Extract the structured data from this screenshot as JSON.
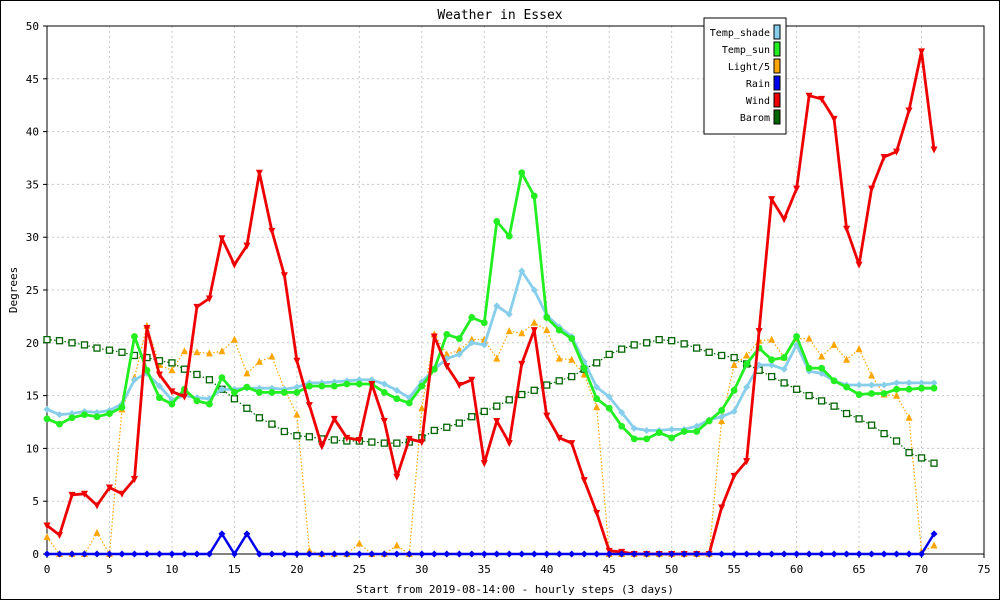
{
  "chart_data": {
    "type": "line",
    "title": "Weather in Essex",
    "xlabel": "Start from 2019-08-14:00 - hourly steps (3 days)",
    "ylabel": "Degrees",
    "xlim": [
      0,
      75
    ],
    "ylim": [
      0,
      50
    ],
    "x_ticks": [
      0,
      5,
      10,
      15,
      20,
      25,
      30,
      35,
      40,
      45,
      50,
      55,
      60,
      65,
      70,
      75
    ],
    "y_ticks": [
      0,
      5,
      10,
      15,
      20,
      25,
      30,
      35,
      40,
      45,
      50
    ],
    "grid": true,
    "legend_position": "top-right",
    "x": [
      0,
      1,
      2,
      3,
      4,
      5,
      6,
      7,
      8,
      9,
      10,
      11,
      12,
      13,
      14,
      15,
      16,
      17,
      18,
      19,
      20,
      21,
      22,
      23,
      24,
      25,
      26,
      27,
      28,
      29,
      30,
      31,
      32,
      33,
      34,
      35,
      36,
      37,
      38,
      39,
      40,
      41,
      42,
      43,
      44,
      45,
      46,
      47,
      48,
      49,
      50,
      51,
      52,
      53,
      54,
      55,
      56,
      57,
      58,
      59,
      60,
      61,
      62,
      63,
      64,
      65,
      66,
      67,
      68,
      69,
      70,
      71
    ],
    "series": [
      {
        "name": "Temp_shade",
        "color": "#87ceeb",
        "style": "solid",
        "marker": "diamond",
        "values": [
          13.7,
          13.2,
          13.3,
          13.5,
          13.4,
          13.6,
          14.2,
          16.5,
          17.1,
          15.9,
          14.6,
          15.0,
          14.8,
          14.7,
          15.6,
          15.6,
          15.7,
          15.7,
          15.7,
          15.6,
          15.8,
          16.2,
          16.2,
          16.3,
          16.4,
          16.5,
          16.5,
          16.1,
          15.5,
          14.8,
          16.3,
          17.5,
          18.5,
          18.9,
          20.0,
          19.8,
          23.5,
          22.7,
          26.8,
          25.0,
          22.6,
          21.5,
          20.6,
          18.2,
          15.8,
          14.9,
          13.4,
          11.9,
          11.7,
          11.7,
          11.8,
          11.8,
          12.1,
          12.7,
          13.0,
          13.5,
          15.8,
          17.9,
          17.9,
          17.5,
          19.8,
          17.3,
          17.1,
          16.4,
          16.0,
          16.0,
          16.0,
          16.0,
          16.2,
          16.2,
          16.2,
          16.2
        ]
      },
      {
        "name": "Temp_sun",
        "color": "#22ee22",
        "style": "solid",
        "marker": "circle",
        "values": [
          12.8,
          12.3,
          12.9,
          13.2,
          13.0,
          13.3,
          13.9,
          20.6,
          17.4,
          14.8,
          14.2,
          15.6,
          14.5,
          14.2,
          16.7,
          15.3,
          15.8,
          15.3,
          15.3,
          15.3,
          15.3,
          15.9,
          15.9,
          15.9,
          16.1,
          16.1,
          16.1,
          15.3,
          14.7,
          14.3,
          15.9,
          17.5,
          20.8,
          20.4,
          22.4,
          21.9,
          31.5,
          30.1,
          36.1,
          33.9,
          22.4,
          21.2,
          20.4,
          17.6,
          14.7,
          13.8,
          12.1,
          10.9,
          10.9,
          11.5,
          11.0,
          11.6,
          11.6,
          12.6,
          13.6,
          15.5,
          18.0,
          19.5,
          18.4,
          18.6,
          20.6,
          17.6,
          17.6,
          16.4,
          15.8,
          15.1,
          15.2,
          15.2,
          15.6,
          15.6,
          15.7,
          15.7
        ]
      },
      {
        "name": "Light/5",
        "color": "#ffa500",
        "style": "dotted",
        "marker": "triangle-up",
        "values": [
          1.6,
          0.0,
          0.0,
          0.0,
          2.0,
          0.0,
          13.7,
          16.7,
          21.6,
          17.9,
          17.4,
          19.2,
          19.1,
          19.0,
          19.2,
          20.3,
          17.1,
          18.2,
          18.7,
          15.6,
          13.2,
          0.3,
          0.0,
          0.0,
          0.0,
          1.0,
          0.0,
          0.0,
          0.8,
          0.0,
          13.8,
          20.8,
          18.9,
          19.3,
          20.3,
          20.3,
          18.5,
          21.1,
          20.9,
          21.9,
          21.2,
          18.5,
          18.4,
          17.0,
          13.9,
          0.0,
          0.0,
          0.0,
          0.0,
          0.0,
          0.0,
          0.0,
          0.0,
          0.0,
          12.6,
          17.9,
          18.8,
          20.2,
          20.3,
          18.6,
          20.4,
          20.4,
          18.7,
          19.8,
          18.4,
          19.4,
          16.9,
          15.1,
          15.0,
          12.9,
          0.2,
          0.8
        ]
      },
      {
        "name": "Rain",
        "color": "#0000ee",
        "style": "solid",
        "marker": "diamond",
        "values": [
          0,
          0,
          0,
          0,
          0,
          0,
          0,
          0,
          0,
          0,
          0,
          0,
          0,
          0,
          1.9,
          0,
          1.9,
          0,
          0,
          0,
          0,
          0,
          0,
          0,
          0,
          0,
          0,
          0,
          0,
          0,
          0,
          0,
          0,
          0,
          0,
          0,
          0,
          0,
          0,
          0,
          0,
          0,
          0,
          0,
          0,
          0,
          0,
          0,
          0,
          0,
          0,
          0,
          0,
          0,
          0,
          0,
          0,
          0,
          0,
          0,
          0,
          0,
          0,
          0,
          0,
          0,
          0,
          0,
          0,
          0,
          0,
          1.9
        ]
      },
      {
        "name": "Wind",
        "color": "#ee0000",
        "style": "solid",
        "marker": "triangle-down",
        "values": [
          2.7,
          1.8,
          5.6,
          5.7,
          4.6,
          6.3,
          5.7,
          7.1,
          21.4,
          17.0,
          15.4,
          14.9,
          23.4,
          24.2,
          29.9,
          27.4,
          29.2,
          36.1,
          30.6,
          26.4,
          18.3,
          14.1,
          10.2,
          12.8,
          11.0,
          10.8,
          16.1,
          12.6,
          7.3,
          10.9,
          10.6,
          20.6,
          17.8,
          16.0,
          16.5,
          8.6,
          12.6,
          10.5,
          18.0,
          21.2,
          13.1,
          11.0,
          10.5,
          7.0,
          3.9,
          0.3,
          0.2,
          0.0,
          0.0,
          0.0,
          0.0,
          0.0,
          0.0,
          0.0,
          4.4,
          7.4,
          8.8,
          21.1,
          33.6,
          31.7,
          34.6,
          43.4,
          43.1,
          41.2,
          30.8,
          27.4,
          34.6,
          37.6,
          38.1,
          42.0,
          47.6,
          38.3
        ]
      },
      {
        "name": "Barom",
        "color": "#006400",
        "style": "dotted",
        "marker": "square",
        "values": [
          20.3,
          20.2,
          20.0,
          19.8,
          19.5,
          19.3,
          19.1,
          18.8,
          18.6,
          18.3,
          18.1,
          17.5,
          17.0,
          16.5,
          15.6,
          14.7,
          13.8,
          12.9,
          12.3,
          11.6,
          11.2,
          11.1,
          10.9,
          10.8,
          10.7,
          10.7,
          10.6,
          10.5,
          10.5,
          10.6,
          11.0,
          11.7,
          12.0,
          12.4,
          13.0,
          13.5,
          14.0,
          14.6,
          15.1,
          15.5,
          16.0,
          16.4,
          16.8,
          17.5,
          18.1,
          18.9,
          19.4,
          19.8,
          20.0,
          20.3,
          20.2,
          19.9,
          19.5,
          19.1,
          18.8,
          18.6,
          18.0,
          17.4,
          16.8,
          16.2,
          15.6,
          15.0,
          14.5,
          14.0,
          13.3,
          12.8,
          12.2,
          11.4,
          10.7,
          9.6,
          9.1,
          8.6
        ]
      }
    ]
  }
}
